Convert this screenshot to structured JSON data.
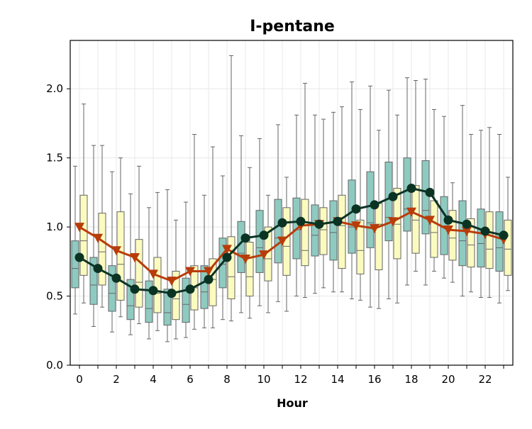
{
  "chart_data": {
    "type": "box+line",
    "title": "I-pentane",
    "xlabel": "Hour",
    "ylabel": "",
    "x_ticks": [
      "0",
      "2",
      "4",
      "6",
      "8",
      "10",
      "12",
      "14",
      "16",
      "18",
      "20",
      "22"
    ],
    "y_ticks": [
      "0.0",
      "0.5",
      "1.0",
      "1.5",
      "2.0"
    ],
    "xlim": [
      -0.5,
      23.5
    ],
    "ylim": [
      0,
      2.35
    ],
    "grid": true,
    "colors": {
      "box_a": "#8ecac0",
      "box_b": "#fbfbc0",
      "line_a": "#0b3324",
      "line_b": "#b83c0a",
      "grid": "#e8e8e8",
      "whisker": "#666666"
    },
    "hours": [
      0,
      1,
      2,
      3,
      4,
      5,
      6,
      7,
      8,
      9,
      10,
      11,
      12,
      13,
      14,
      15,
      16,
      17,
      18,
      19,
      20,
      21,
      22,
      23
    ],
    "box_series_a": {
      "whislo": [
        0.37,
        0.28,
        0.24,
        0.22,
        0.19,
        0.17,
        0.2,
        0.27,
        0.33,
        0.38,
        0.43,
        0.46,
        0.5,
        0.52,
        0.53,
        0.48,
        0.42,
        0.48,
        0.58,
        0.58,
        0.63,
        0.5,
        0.49,
        0.45
      ],
      "q1": [
        0.56,
        0.44,
        0.39,
        0.33,
        0.31,
        0.29,
        0.31,
        0.41,
        0.56,
        0.67,
        0.67,
        0.74,
        0.77,
        0.79,
        0.76,
        0.81,
        0.85,
        0.9,
        0.97,
        0.95,
        0.8,
        0.72,
        0.71,
        0.68
      ],
      "med": [
        0.7,
        0.58,
        0.52,
        0.43,
        0.41,
        0.38,
        0.44,
        0.53,
        0.73,
        0.81,
        0.85,
        0.92,
        0.98,
        0.94,
        0.96,
        1.0,
        1.03,
        1.07,
        1.13,
        1.12,
        1.0,
        0.9,
        0.88,
        0.85
      ],
      "q3": [
        0.9,
        0.78,
        0.72,
        0.62,
        0.61,
        0.55,
        0.63,
        0.72,
        0.92,
        1.04,
        1.12,
        1.2,
        1.21,
        1.16,
        1.19,
        1.34,
        1.4,
        1.47,
        1.5,
        1.48,
        1.22,
        1.19,
        1.13,
        1.11
      ],
      "whishi": [
        1.44,
        1.59,
        1.4,
        1.24,
        1.14,
        1.27,
        1.18,
        1.23,
        1.37,
        1.66,
        1.64,
        1.74,
        1.81,
        1.81,
        1.83,
        2.05,
        2.02,
        1.99,
        2.08,
        2.07,
        1.8,
        1.88,
        1.7,
        1.67
      ],
      "mean": [
        0.78,
        0.7,
        0.63,
        0.55,
        0.54,
        0.52,
        0.55,
        0.62,
        0.78,
        0.92,
        0.94,
        1.03,
        1.04,
        1.02,
        1.04,
        1.13,
        1.16,
        1.22,
        1.28,
        1.25,
        1.05,
        1.02,
        0.97,
        0.94
      ]
    },
    "box_series_b": {
      "whislo": [
        0.45,
        0.42,
        0.35,
        0.3,
        0.25,
        0.19,
        0.26,
        0.27,
        0.32,
        0.34,
        0.38,
        0.39,
        0.49,
        0.56,
        0.53,
        0.47,
        0.41,
        0.45,
        0.68,
        0.68,
        0.6,
        0.53,
        0.49,
        0.54
      ],
      "q1": [
        0.65,
        0.58,
        0.47,
        0.42,
        0.38,
        0.33,
        0.4,
        0.43,
        0.48,
        0.5,
        0.61,
        0.65,
        0.72,
        0.8,
        0.7,
        0.66,
        0.69,
        0.77,
        0.81,
        0.78,
        0.76,
        0.71,
        0.7,
        0.65
      ],
      "med": [
        0.9,
        0.82,
        0.73,
        0.6,
        0.52,
        0.48,
        0.56,
        0.62,
        0.64,
        0.64,
        0.77,
        0.86,
        0.83,
        0.98,
        1.01,
        0.83,
        1.02,
        1.02,
        1.05,
        0.96,
        0.92,
        0.87,
        0.84,
        0.84
      ],
      "q3": [
        1.23,
        1.1,
        1.11,
        0.91,
        0.78,
        0.68,
        0.72,
        0.77,
        0.93,
        0.89,
        1.0,
        1.14,
        1.2,
        1.14,
        1.23,
        1.05,
        1.17,
        1.28,
        1.3,
        1.19,
        1.12,
        1.06,
        1.11,
        1.05
      ],
      "whishi": [
        1.89,
        1.59,
        1.5,
        1.44,
        1.25,
        1.05,
        1.67,
        1.58,
        2.24,
        1.43,
        1.23,
        1.36,
        2.04,
        1.78,
        1.87,
        1.85,
        1.7,
        1.81,
        2.06,
        1.85,
        1.32,
        1.67,
        1.72,
        1.36
      ],
      "mean": [
        1.0,
        0.92,
        0.83,
        0.78,
        0.66,
        0.61,
        0.68,
        0.68,
        0.84,
        0.77,
        0.8,
        0.9,
        1.01,
        1.02,
        1.04,
        1.01,
        0.99,
        1.04,
        1.11,
        1.05,
        0.98,
        0.97,
        0.95,
        0.91
      ]
    }
  }
}
